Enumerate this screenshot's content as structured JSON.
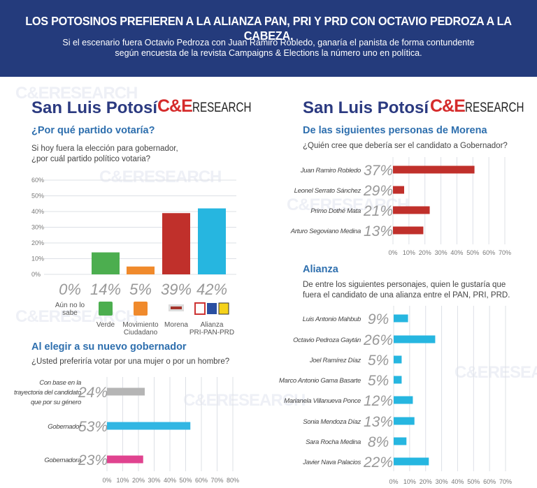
{
  "header": {
    "headline": "LOS POTOSINOS PREFIEREN A LA ALIANZA  PAN, PRI Y PRD CON OCTAVIO PEDROZA A LA CABEZA.",
    "subhead_1": "Si el escenario fuera Octavio Pedroza con Juan Ramiro Robledo, ganaría el panista de forma contundente",
    "subhead_2": "según encuesta de la revista Campaigns & Elections la número uno en política."
  },
  "watermark": "C&ERESEARCH",
  "left": {
    "title": "San Luis Potosí",
    "logo_ce": "C&E",
    "logo_research": "RESEARCH",
    "section_1": "¿Por qué partido votaría?",
    "question_1a": "Si hoy fuera la elección para gobernador,",
    "question_1b": "¿por cuál partido político votaria?",
    "section_3": "Al elegir a su nuevo gobernador",
    "question_3": "¿Usted preferiría votar por una mujer o por un hombre?"
  },
  "right": {
    "title": "San Luis Potosí",
    "logo_ce": "C&E",
    "logo_research": "RESEARCH",
    "section_2": "De las siguientes personas de Morena",
    "question_2": "¿Quién cree que debería ser el candidato a Gobernador?",
    "section_4": "Alianza",
    "question_4a": "De entre los siguientes personajes, quien le gustaría que",
    "question_4b": "fuera el candidato de una alianza entre el PAN, PRI, PRD."
  },
  "chart_data": [
    {
      "type": "bar",
      "orientation": "vertical",
      "title": "¿Por qué partido votaría?",
      "categories": [
        "Aún no lo sabe",
        "Verde",
        "Movimiento Ciudadano",
        "Morena",
        "Alianza PRI-PAN-PRD"
      ],
      "values": [
        0,
        14,
        5,
        39,
        42
      ],
      "value_labels": [
        "0%",
        "14%",
        "5%",
        "39%",
        "42%"
      ],
      "colors": [
        "#cccccc",
        "#4cae4f",
        "#f08a2c",
        "#c0302b",
        "#26b6e0"
      ],
      "icons": [
        "",
        "verde-party-logo",
        "movimiento-ciudadano-logo",
        "morena-logo",
        "pri-pan-prd-logos"
      ],
      "yticks": [
        "0%",
        "10%",
        "20%",
        "30%",
        "40%",
        "50%",
        "60%"
      ],
      "ylim": [
        0,
        60
      ],
      "grid": true
    },
    {
      "type": "bar",
      "orientation": "horizontal",
      "title": "De las siguientes personas de Morena",
      "categories": [
        "Juan Ramiro Robledo",
        "Leonel Serrato Sánchez",
        "Primo Dothé Mata",
        "Arturo Segoviano Medina"
      ],
      "values": [
        37,
        29,
        21,
        13
      ],
      "value_labels": [
        "37%",
        "29%",
        "21%",
        "13%"
      ],
      "bar_lengths_as_drawn": [
        51,
        7,
        23,
        19
      ],
      "color": "#c0302b",
      "xticks": [
        "0%",
        "10%",
        "20%",
        "30%",
        "40%",
        "50%",
        "60%",
        "70%"
      ],
      "xlim": [
        0,
        70
      ],
      "grid": true
    },
    {
      "type": "bar",
      "orientation": "horizontal",
      "title": "Al elegir a su nuevo gobernador",
      "categories": [
        "Con base en la|trayectoria del candidato|que por su género",
        "Gobernador",
        "Gobernadora"
      ],
      "values": [
        24,
        53,
        23
      ],
      "value_labels": [
        "24%",
        "53%",
        "23%"
      ],
      "colors": [
        "#b5b5b5",
        "#31b6e3",
        "#e0438f"
      ],
      "xticks": [
        "0%",
        "10%",
        "20%",
        "30%",
        "40%",
        "50%",
        "60%",
        "70%",
        "80%"
      ],
      "xlim": [
        0,
        80
      ],
      "grid": true
    },
    {
      "type": "bar",
      "orientation": "horizontal",
      "title": "Alianza",
      "categories": [
        "Luis Antonio Mahbub",
        "Octavio Pedroza Gaytán",
        "Joel Ramírez Díaz",
        "Marco Antonio Gama Basarte",
        "Marianela Villanueva Ponce",
        "Sonia Mendoza Díaz",
        "Sara Rocha Medina",
        "Javier Nava Palacios"
      ],
      "values": [
        9,
        26,
        5,
        5,
        12,
        13,
        8,
        22
      ],
      "value_labels": [
        "9%",
        "26%",
        "5%",
        "5%",
        "12%",
        "13%",
        "8%",
        "22%"
      ],
      "color": "#26b6e0",
      "xticks": [
        "0%",
        "10%",
        "20%",
        "30%",
        "40%",
        "50%",
        "60%",
        "70%"
      ],
      "xlim": [
        0,
        70
      ],
      "grid": true
    }
  ]
}
